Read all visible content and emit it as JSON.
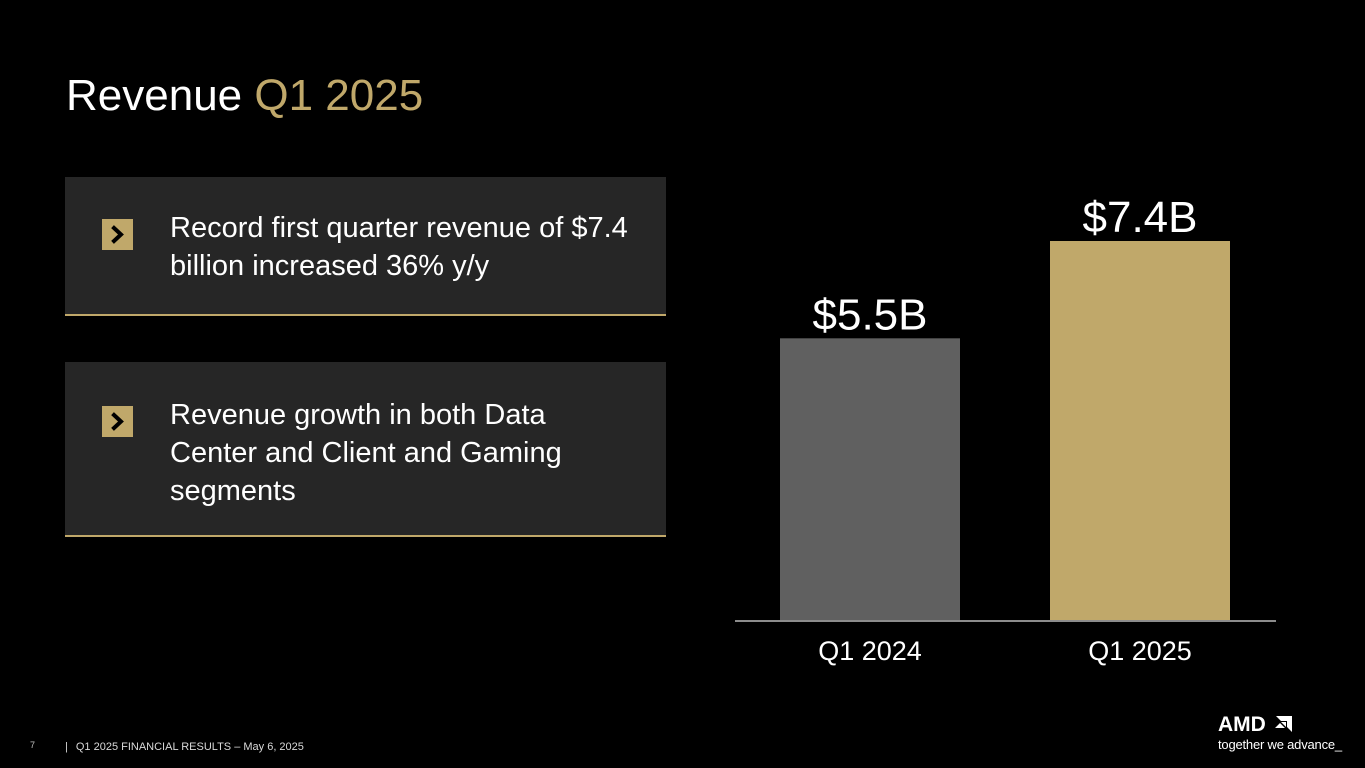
{
  "slide": {
    "title_main": "Revenue",
    "title_accent": "Q1 2025",
    "page_number": "7",
    "footer_separator": "|",
    "footer_text": "Q1 2025 FINANCIAL RESULTS – May 6, 2025"
  },
  "bullets": [
    {
      "icon": "chevron-right-icon",
      "text": "Record first quarter revenue of $7.4 billion increased 36% y/y"
    },
    {
      "icon": "chevron-right-icon",
      "text": "Revenue growth in both Data Center and Client and Gaming segments"
    }
  ],
  "logo": {
    "wordmark": "AMD",
    "tagline": "together we advance_"
  },
  "colors": {
    "background": "#000000",
    "accent": "#c0a86a",
    "card": "#262626",
    "bar_prior": "#606060",
    "bar_current": "#c0a86a",
    "axis": "#8c8c8c"
  },
  "chart_data": {
    "type": "bar",
    "categories": [
      "Q1 2024",
      "Q1 2025"
    ],
    "values": [
      5.5,
      7.4
    ],
    "data_labels": [
      "$5.5B",
      "$7.4B"
    ],
    "title": "",
    "xlabel": "",
    "ylabel": "",
    "ylim": [
      0,
      7.4
    ],
    "grid": false,
    "legend": "none"
  }
}
